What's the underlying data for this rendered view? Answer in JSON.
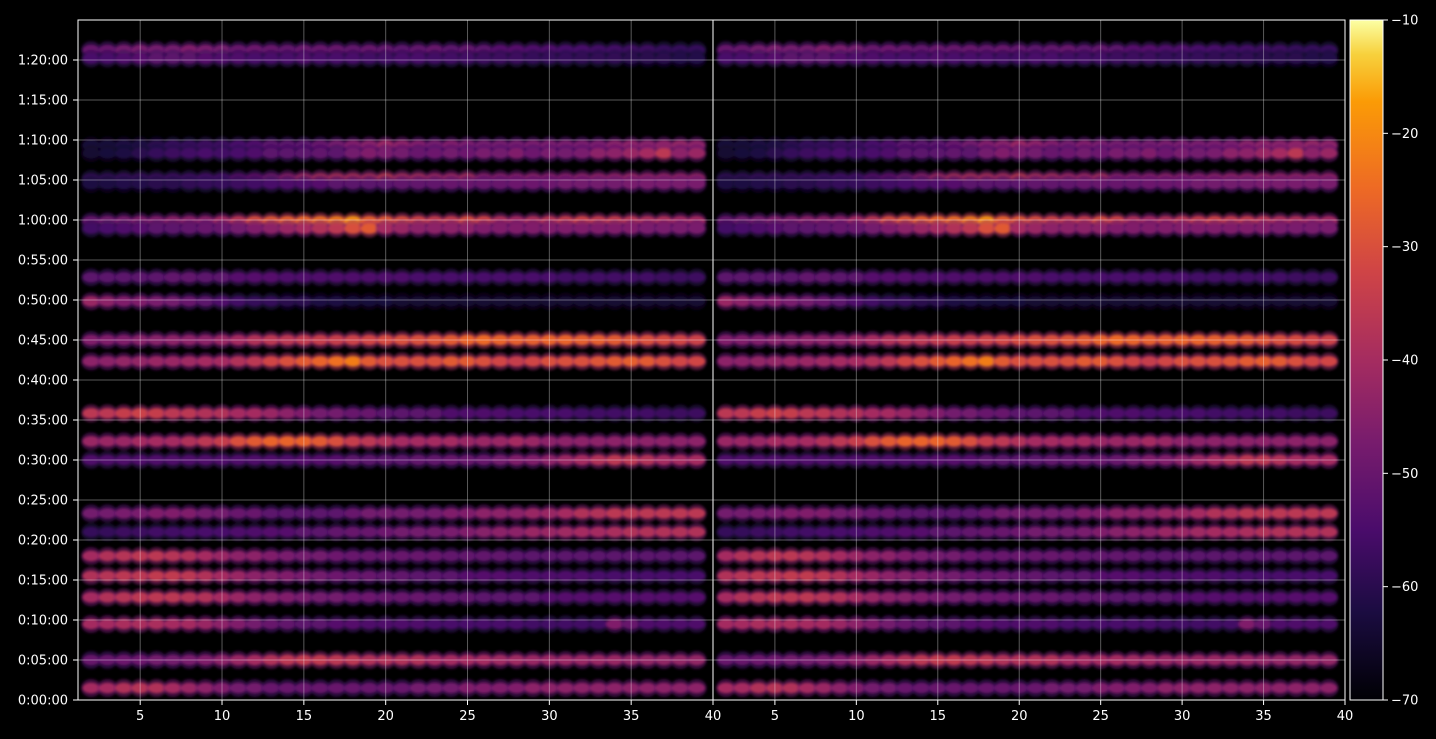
{
  "chart_data": {
    "type": "heatmap",
    "title": "",
    "xlabel": "",
    "ylabel": "",
    "panels": [
      {
        "name": "",
        "xlim": [
          1.2,
          40
        ],
        "xticks": [
          5,
          10,
          15,
          20,
          25,
          30,
          35,
          40
        ]
      },
      {
        "name": "",
        "xlim": [
          1.2,
          40
        ],
        "xticks": [
          5,
          10,
          15,
          20,
          25,
          30,
          35,
          40
        ]
      }
    ],
    "y_range_seconds": [
      0,
      5100
    ],
    "yticks": [
      {
        "seconds": 0,
        "label": "0:00:00"
      },
      {
        "seconds": 300,
        "label": "0:05:00"
      },
      {
        "seconds": 600,
        "label": "0:10:00"
      },
      {
        "seconds": 900,
        "label": "0:15:00"
      },
      {
        "seconds": 1200,
        "label": "0:20:00"
      },
      {
        "seconds": 1500,
        "label": "0:25:00"
      },
      {
        "seconds": 1800,
        "label": "0:30:00"
      },
      {
        "seconds": 2100,
        "label": "0:35:00"
      },
      {
        "seconds": 2400,
        "label": "0:40:00"
      },
      {
        "seconds": 2700,
        "label": "0:45:00"
      },
      {
        "seconds": 3000,
        "label": "0:50:00"
      },
      {
        "seconds": 3300,
        "label": "0:55:00"
      },
      {
        "seconds": 3600,
        "label": "1:00:00"
      },
      {
        "seconds": 3900,
        "label": "1:05:00"
      },
      {
        "seconds": 4200,
        "label": "1:10:00"
      },
      {
        "seconds": 4500,
        "label": "1:15:00"
      },
      {
        "seconds": 4800,
        "label": "1:20:00"
      }
    ],
    "grid": true,
    "colormap": "inferno",
    "colorbar": {
      "range": [
        -70,
        -10
      ],
      "ticks": [
        "−70",
        "−60",
        "−50",
        "−40",
        "−30",
        "−20",
        "−10"
      ]
    },
    "x_bins": [
      2,
      3,
      4,
      5,
      6,
      7,
      8,
      9,
      10,
      11,
      12,
      13,
      14,
      15,
      16,
      17,
      18,
      19,
      20,
      21,
      22,
      23,
      24,
      25,
      26,
      27,
      28,
      29,
      30,
      31,
      32,
      33,
      34,
      35,
      36,
      37,
      38,
      39
    ],
    "bands": [
      {
        "t": 4875,
        "db": [
          -50,
          -50,
          -48,
          -47,
          -48,
          -48,
          -46,
          -47,
          -48,
          -50,
          -49,
          -50,
          -51,
          -50,
          -50,
          -50,
          -51,
          -50,
          -51,
          -52,
          -51,
          -50,
          -52,
          -51,
          -52,
          -53,
          -53,
          -54,
          -54,
          -55,
          -55,
          -56,
          -56,
          -57,
          -57,
          -58,
          -58,
          -58
        ]
      },
      {
        "t": 4810,
        "db": [
          -55,
          -55,
          -54,
          -53,
          -52,
          -52,
          -52,
          -53,
          -54,
          -54,
          -55,
          -55,
          -55,
          -54,
          -55,
          -55,
          -55,
          -56,
          -56,
          -55,
          -55,
          -56,
          -56,
          -56,
          -57,
          -57,
          -57,
          -58,
          -58,
          -58,
          -59,
          -59,
          -59,
          -60,
          -60,
          -60,
          -61,
          -61
        ]
      },
      {
        "t": 4160,
        "db": [
          -63,
          -63,
          -62,
          -62,
          -60,
          -58,
          -58,
          -57,
          -57,
          -55,
          -54,
          -52,
          -52,
          -52,
          -50,
          -48,
          -46,
          -45,
          -42,
          -44,
          -46,
          -48,
          -46,
          -47,
          -48,
          -48,
          -48,
          -47,
          -47,
          -47,
          -47,
          -47,
          -45,
          -44,
          -45,
          -44,
          -43,
          -44
        ]
      },
      {
        "t": 4100,
        "db": [
          -64,
          -63,
          -62,
          -60,
          -58,
          -57,
          -56,
          -55,
          -56,
          -55,
          -54,
          -52,
          -52,
          -52,
          -51,
          -52,
          -48,
          -46,
          -47,
          -48,
          -50,
          -49,
          -48,
          -49,
          -47,
          -48,
          -46,
          -49,
          -47,
          -48,
          -47,
          -44,
          -44,
          -42,
          -40,
          -36,
          -44,
          -42
        ]
      },
      {
        "t": 3910,
        "db": [
          -58,
          -58,
          -57,
          -57,
          -57,
          -56,
          -56,
          -55,
          -55,
          -52,
          -50,
          -48,
          -44,
          -40,
          -38,
          -37,
          -37,
          -38,
          -34,
          -38,
          -38,
          -40,
          -40,
          -38,
          -44,
          -44,
          -44,
          -43,
          -44,
          -44,
          -43,
          -42,
          -42,
          -41,
          -42,
          -42,
          -42,
          -42
        ]
      },
      {
        "t": 3870,
        "db": [
          -62,
          -62,
          -61,
          -61,
          -60,
          -60,
          -59,
          -58,
          -58,
          -57,
          -56,
          -55,
          -54,
          -54,
          -53,
          -52,
          -52,
          -52,
          -52,
          -51,
          -51,
          -51,
          -50,
          -50,
          -50,
          -50,
          -49,
          -49,
          -49,
          -48,
          -48,
          -48,
          -48,
          -47,
          -47,
          -47,
          -47,
          -47
        ]
      },
      {
        "t": 3590,
        "db": [
          -50,
          -48,
          -47,
          -46,
          -46,
          -44,
          -44,
          -44,
          -40,
          -36,
          -30,
          -28,
          -26,
          -25,
          -24,
          -22,
          -18,
          -26,
          -28,
          -30,
          -32,
          -34,
          -34,
          -30,
          -32,
          -38,
          -40,
          -38,
          -36,
          -34,
          -32,
          -34,
          -34,
          -36,
          -38,
          -38,
          -40,
          -40
        ]
      },
      {
        "t": 3535,
        "db": [
          -56,
          -55,
          -54,
          -53,
          -52,
          -52,
          -51,
          -50,
          -50,
          -48,
          -46,
          -44,
          -42,
          -40,
          -38,
          -36,
          -30,
          -28,
          -40,
          -42,
          -44,
          -44,
          -44,
          -44,
          -46,
          -46,
          -46,
          -46,
          -46,
          -46,
          -46,
          -46,
          -46,
          -46,
          -47,
          -47,
          -47,
          -47
        ]
      },
      {
        "t": 3170,
        "db": [
          -52,
          -52,
          -52,
          -52,
          -52,
          -51,
          -51,
          -52,
          -52,
          -53,
          -53,
          -53,
          -54,
          -54,
          -54,
          -54,
          -54,
          -54,
          -54,
          -54,
          -55,
          -55,
          -55,
          -55,
          -55,
          -55,
          -55,
          -55,
          -55,
          -56,
          -56,
          -56,
          -56,
          -56,
          -56,
          -57,
          -57,
          -57
        ]
      },
      {
        "t": 2990,
        "db": [
          -42,
          -44,
          -46,
          -46,
          -47,
          -48,
          -50,
          -52,
          -54,
          -56,
          -58,
          -58,
          -60,
          -60,
          -62,
          -62,
          -63,
          -63,
          -63,
          -64,
          -64,
          -64,
          -64,
          -64,
          -64,
          -64,
          -64,
          -64,
          -64,
          -64,
          -64,
          -64,
          -64,
          -64,
          -64,
          -64,
          -64,
          -64
        ]
      },
      {
        "t": 2700,
        "db": [
          -46,
          -46,
          -46,
          -45,
          -45,
          -44,
          -44,
          -44,
          -42,
          -40,
          -38,
          -36,
          -36,
          -35,
          -34,
          -34,
          -33,
          -32,
          -31,
          -30,
          -30,
          -29,
          -28,
          -26,
          -25,
          -26,
          -27,
          -27,
          -26,
          -26,
          -27,
          -27,
          -28,
          -29,
          -30,
          -31,
          -32,
          -33
        ]
      },
      {
        "t": 2540,
        "db": [
          -44,
          -44,
          -43,
          -43,
          -42,
          -42,
          -41,
          -40,
          -40,
          -38,
          -36,
          -32,
          -30,
          -28,
          -26,
          -24,
          -22,
          -28,
          -30,
          -30,
          -30,
          -30,
          -28,
          -28,
          -30,
          -32,
          -34,
          -32,
          -30,
          -30,
          -30,
          -29,
          -28,
          -27,
          -28,
          -30,
          -32,
          -32
        ]
      },
      {
        "t": 2150,
        "db": [
          -36,
          -36,
          -34,
          -33,
          -34,
          -36,
          -36,
          -38,
          -38,
          -40,
          -40,
          -42,
          -44,
          -46,
          -48,
          -48,
          -50,
          -50,
          -52,
          -52,
          -52,
          -52,
          -54,
          -54,
          -54,
          -54,
          -55,
          -55,
          -55,
          -55,
          -56,
          -56,
          -56,
          -56,
          -56,
          -57,
          -57,
          -57
        ]
      },
      {
        "t": 1940,
        "db": [
          -42,
          -42,
          -42,
          -40,
          -40,
          -40,
          -38,
          -36,
          -34,
          -30,
          -28,
          -26,
          -26,
          -26,
          -28,
          -30,
          -34,
          -36,
          -38,
          -40,
          -40,
          -40,
          -40,
          -42,
          -42,
          -42,
          -40,
          -42,
          -44,
          -44,
          -44,
          -44,
          -44,
          -44,
          -44,
          -44,
          -44,
          -44
        ]
      },
      {
        "t": 1800,
        "db": [
          -54,
          -54,
          -54,
          -54,
          -54,
          -54,
          -54,
          -54,
          -54,
          -54,
          -54,
          -54,
          -54,
          -53,
          -53,
          -53,
          -52,
          -52,
          -52,
          -52,
          -51,
          -51,
          -50,
          -50,
          -50,
          -48,
          -46,
          -46,
          -44,
          -42,
          -40,
          -38,
          -36,
          -36,
          -38,
          -40,
          -40,
          -40
        ]
      },
      {
        "t": 1400,
        "db": [
          -48,
          -48,
          -47,
          -47,
          -46,
          -46,
          -46,
          -48,
          -48,
          -50,
          -50,
          -52,
          -52,
          -52,
          -52,
          -52,
          -50,
          -48,
          -48,
          -48,
          -48,
          -48,
          -46,
          -46,
          -44,
          -44,
          -44,
          -42,
          -42,
          -40,
          -38,
          -38,
          -36,
          -36,
          -36,
          -36,
          -36,
          -36
        ]
      },
      {
        "t": 1260,
        "db": [
          -58,
          -58,
          -57,
          -57,
          -56,
          -56,
          -55,
          -55,
          -55,
          -54,
          -54,
          -53,
          -53,
          -52,
          -52,
          -51,
          -50,
          -50,
          -49,
          -48,
          -48,
          -48,
          -47,
          -46,
          -45,
          -44,
          -44,
          -42,
          -42,
          -41,
          -40,
          -40,
          -39,
          -38,
          -38,
          -38,
          -38,
          -38
        ]
      },
      {
        "t": 1080,
        "db": [
          -40,
          -38,
          -37,
          -36,
          -36,
          -37,
          -38,
          -40,
          -42,
          -44,
          -44,
          -46,
          -47,
          -48,
          -48,
          -49,
          -50,
          -50,
          -50,
          -50,
          -50,
          -50,
          -51,
          -51,
          -51,
          -51,
          -52,
          -52,
          -52,
          -52,
          -52,
          -52,
          -52,
          -52,
          -52,
          -52,
          -52,
          -52
        ]
      },
      {
        "t": 930,
        "db": [
          -38,
          -37,
          -36,
          -36,
          -35,
          -35,
          -36,
          -38,
          -40,
          -42,
          -44,
          -45,
          -46,
          -47,
          -48,
          -49,
          -50,
          -50,
          -51,
          -51,
          -52,
          -52,
          -52,
          -53,
          -53,
          -53,
          -54,
          -54,
          -54,
          -54,
          -54,
          -55,
          -55,
          -55,
          -55,
          -55,
          -55,
          -55
        ]
      },
      {
        "t": 770,
        "db": [
          -40,
          -38,
          -37,
          -36,
          -36,
          -36,
          -37,
          -38,
          -40,
          -42,
          -44,
          -45,
          -46,
          -47,
          -48,
          -48,
          -49,
          -49,
          -50,
          -50,
          -50,
          -51,
          -51,
          -51,
          -52,
          -52,
          -52,
          -52,
          -53,
          -53,
          -53,
          -53,
          -53,
          -53,
          -53,
          -53,
          -53,
          -53
        ]
      },
      {
        "t": 570,
        "db": [
          -40,
          -40,
          -39,
          -39,
          -39,
          -40,
          -40,
          -42,
          -44,
          -46,
          -48,
          -50,
          -51,
          -52,
          -52,
          -53,
          -53,
          -54,
          -54,
          -54,
          -54,
          -55,
          -55,
          -55,
          -55,
          -55,
          -55,
          -56,
          -56,
          -56,
          -56,
          -56,
          -46,
          -50,
          -54,
          -54,
          -54,
          -54
        ]
      },
      {
        "t": 300,
        "db": [
          -50,
          -50,
          -49,
          -49,
          -48,
          -48,
          -47,
          -46,
          -44,
          -42,
          -40,
          -38,
          -36,
          -35,
          -35,
          -36,
          -36,
          -38,
          -38,
          -38,
          -38,
          -40,
          -40,
          -40,
          -40,
          -41,
          -41,
          -42,
          -42,
          -42,
          -42,
          -42,
          -42,
          -43,
          -43,
          -43,
          -43,
          -43
        ]
      },
      {
        "t": 90,
        "db": [
          -40,
          -40,
          -38,
          -37,
          -38,
          -40,
          -42,
          -44,
          -46,
          -48,
          -48,
          -50,
          -50,
          -50,
          -50,
          -50,
          -50,
          -50,
          -50,
          -50,
          -48,
          -48,
          -48,
          -46,
          -46,
          -46,
          -46,
          -44,
          -44,
          -44,
          -44,
          -44,
          -44,
          -44,
          -44,
          -44,
          -44,
          -44
        ]
      }
    ]
  }
}
